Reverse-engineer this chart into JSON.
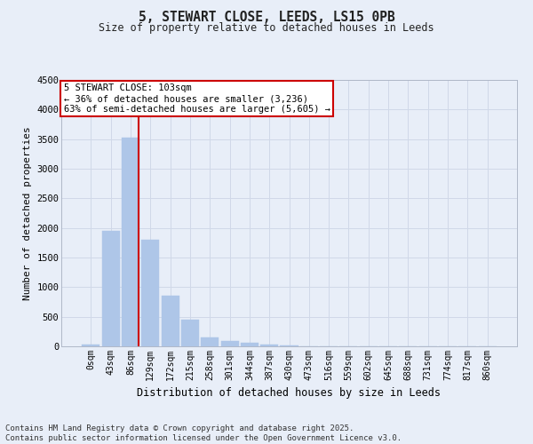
{
  "title_line1": "5, STEWART CLOSE, LEEDS, LS15 0PB",
  "title_line2": "Size of property relative to detached houses in Leeds",
  "xlabel": "Distribution of detached houses by size in Leeds",
  "ylabel": "Number of detached properties",
  "bin_labels": [
    "0sqm",
    "43sqm",
    "86sqm",
    "129sqm",
    "172sqm",
    "215sqm",
    "258sqm",
    "301sqm",
    "344sqm",
    "387sqm",
    "430sqm",
    "473sqm",
    "516sqm",
    "559sqm",
    "602sqm",
    "645sqm",
    "688sqm",
    "731sqm",
    "774sqm",
    "817sqm",
    "860sqm"
  ],
  "bar_values": [
    30,
    1950,
    3520,
    1800,
    850,
    450,
    155,
    90,
    55,
    35,
    10,
    5,
    2,
    1,
    0,
    0,
    0,
    0,
    0,
    0,
    0
  ],
  "bar_color": "#aec6e8",
  "bar_edge_color": "#aec6e8",
  "grid_color": "#d0d8e8",
  "background_color": "#e8eef8",
  "red_line_x": 2.4,
  "annotation_text": "5 STEWART CLOSE: 103sqm\n← 36% of detached houses are smaller (3,236)\n63% of semi-detached houses are larger (5,605) →",
  "annotation_box_color": "#ffffff",
  "annotation_box_edge": "#cc0000",
  "red_line_color": "#cc0000",
  "ylim": [
    0,
    4500
  ],
  "yticks": [
    0,
    500,
    1000,
    1500,
    2000,
    2500,
    3000,
    3500,
    4000,
    4500
  ],
  "footer_line1": "Contains HM Land Registry data © Crown copyright and database right 2025.",
  "footer_line2": "Contains public sector information licensed under the Open Government Licence v3.0."
}
